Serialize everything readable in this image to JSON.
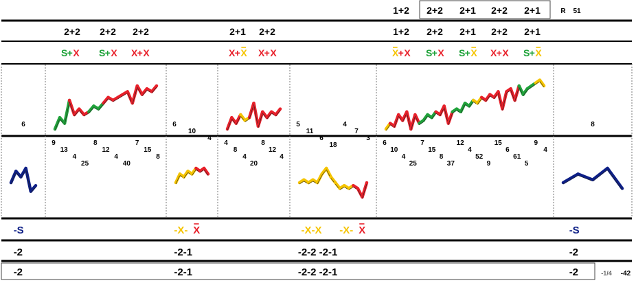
{
  "colors": {
    "green": "#1fa23a",
    "red": "#e8202a",
    "yellow": "#f5c400",
    "navy": "#0d1f86",
    "black": "#000000"
  },
  "header": {
    "boxed_codes": [
      "1+2",
      "2+2",
      "2+1",
      "2+2",
      "2+1"
    ],
    "r_label": "R",
    "r_value": "51"
  },
  "combo_row": [
    {
      "col": 1,
      "items": [
        "2+2",
        "2+2",
        "2+2"
      ]
    },
    {
      "col": 3,
      "items": [
        "2+1",
        "2+2"
      ]
    },
    {
      "col": 5,
      "items": [
        "1+2",
        "2+2",
        "2+1",
        "2+2",
        "2+1"
      ]
    }
  ],
  "symbol_row": [
    {
      "col": 1,
      "items": [
        [
          {
            "t": "S",
            "c": "green"
          },
          {
            "t": "+",
            "c": "green"
          },
          {
            "t": "X",
            "c": "red"
          }
        ],
        [
          {
            "t": "S",
            "c": "green"
          },
          {
            "t": "+",
            "c": "green"
          },
          {
            "t": "X",
            "c": "red"
          }
        ],
        [
          {
            "t": "X",
            "c": "red"
          },
          {
            "t": "+",
            "c": "red"
          },
          {
            "t": "X",
            "c": "red"
          }
        ]
      ]
    },
    {
      "col": 3,
      "items": [
        [
          {
            "t": "X",
            "c": "red"
          },
          {
            "t": "+",
            "c": "red"
          },
          {
            "t": "X",
            "c": "yellow",
            "bar": true
          }
        ],
        [
          {
            "t": "X",
            "c": "red"
          },
          {
            "t": "+",
            "c": "red"
          },
          {
            "t": "X",
            "c": "red"
          }
        ]
      ]
    },
    {
      "col": 5,
      "items": [
        [
          {
            "t": "X",
            "c": "yellow",
            "bar": true
          },
          {
            "t": "+",
            "c": "red"
          },
          {
            "t": "X",
            "c": "red"
          }
        ],
        [
          {
            "t": "S",
            "c": "green"
          },
          {
            "t": "+",
            "c": "green"
          },
          {
            "t": "X",
            "c": "red"
          }
        ],
        [
          {
            "t": "S",
            "c": "green"
          },
          {
            "t": "+",
            "c": "green"
          },
          {
            "t": "X",
            "c": "yellow",
            "bar": true
          }
        ],
        [
          {
            "t": "X",
            "c": "red"
          },
          {
            "t": "+",
            "c": "red"
          },
          {
            "t": "X",
            "c": "red"
          }
        ],
        [
          {
            "t": "S",
            "c": "green"
          },
          {
            "t": "+",
            "c": "green"
          },
          {
            "t": "X",
            "c": "yellow",
            "bar": true
          }
        ]
      ]
    }
  ],
  "upper_numbers": [
    {
      "col": 0,
      "values": [
        "6"
      ]
    },
    {
      "col": 2,
      "values": [
        "6",
        "10",
        "4"
      ]
    },
    {
      "col": 4,
      "values": [
        "5",
        "11",
        "6",
        "18",
        "4",
        "7",
        "3"
      ]
    },
    {
      "col": 6,
      "values": [
        "8"
      ]
    }
  ],
  "lower_numbers": [
    {
      "col": 1,
      "values": [
        "9",
        "13",
        "4",
        "25",
        "8",
        "12",
        "4",
        "40",
        "7",
        "15",
        "8"
      ]
    },
    {
      "col": 3,
      "values": [
        "4",
        "8",
        "4",
        "20",
        "8",
        "12",
        "4"
      ]
    },
    {
      "col": 5,
      "values": [
        "6",
        "10",
        "4",
        "25",
        "7",
        "15",
        "8",
        "37",
        "12",
        "4",
        "52",
        "9",
        "15",
        "6",
        "61",
        "5",
        "9",
        "4"
      ]
    }
  ],
  "bottom_rows": [
    [
      {
        "col": 0,
        "parts": [
          {
            "t": "-S",
            "c": "navy"
          }
        ]
      },
      {
        "col": 2,
        "parts": [
          {
            "t": "-X-",
            "c": "yellow"
          },
          {
            "t": "X",
            "c": "red",
            "bar": true
          }
        ]
      },
      {
        "col": 4,
        "parts": [
          {
            "t": "-X-X",
            "c": "yellow"
          },
          {
            "t": "  ",
            "c": "yellow"
          },
          {
            "t": "-X-",
            "c": "yellow"
          },
          {
            "t": "X",
            "c": "red",
            "bar": true
          }
        ]
      },
      {
        "col": 6,
        "parts": [
          {
            "t": "-S",
            "c": "navy"
          }
        ]
      }
    ],
    [
      {
        "col": 0,
        "parts": [
          {
            "t": "-2",
            "c": "black"
          }
        ]
      },
      {
        "col": 2,
        "parts": [
          {
            "t": "-2-1",
            "c": "black"
          }
        ]
      },
      {
        "col": 4,
        "parts": [
          {
            "t": "-2-2   -2-1",
            "c": "black"
          }
        ]
      },
      {
        "col": 6,
        "parts": [
          {
            "t": "-2",
            "c": "black"
          }
        ]
      }
    ],
    [
      {
        "col": 0,
        "parts": [
          {
            "t": "-2",
            "c": "black"
          }
        ]
      },
      {
        "col": 2,
        "parts": [
          {
            "t": "-2-1",
            "c": "black"
          }
        ]
      },
      {
        "col": 4,
        "parts": [
          {
            "t": "-2-2   -2-1",
            "c": "black"
          }
        ]
      },
      {
        "col": 6,
        "parts": [
          {
            "t": "-2",
            "c": "black"
          }
        ]
      }
    ]
  ],
  "footer": {
    "fraction": "-1/4",
    "value": "-42"
  },
  "chart_data": {
    "type": "line",
    "title": "",
    "segments": [
      {
        "col": 0,
        "zone": "lower",
        "values": [
          {
            "v": 0,
            "c": "navy"
          },
          {
            "v": 4,
            "c": "navy"
          },
          {
            "v": 2,
            "c": "navy"
          },
          {
            "v": 5,
            "c": "navy"
          },
          {
            "v": -3,
            "c": "navy"
          },
          {
            "v": -1,
            "c": "navy"
          }
        ]
      },
      {
        "col": 1,
        "zone": "upper",
        "values": [
          {
            "v": 0,
            "c": "green"
          },
          {
            "v": 4,
            "c": "green"
          },
          {
            "v": 2,
            "c": "green"
          },
          {
            "v": 10,
            "c": "green"
          },
          {
            "v": 5,
            "c": "red"
          },
          {
            "v": 7,
            "c": "red"
          },
          {
            "v": 5,
            "c": "red"
          },
          {
            "v": 6,
            "c": "red"
          },
          {
            "v": 8,
            "c": "green"
          },
          {
            "v": 7,
            "c": "green"
          },
          {
            "v": 9,
            "c": "green"
          },
          {
            "v": 11,
            "c": "red"
          },
          {
            "v": 10,
            "c": "red"
          },
          {
            "v": 11,
            "c": "red"
          },
          {
            "v": 12,
            "c": "red"
          },
          {
            "v": 13,
            "c": "red"
          },
          {
            "v": 9,
            "c": "red"
          },
          {
            "v": 15,
            "c": "red"
          },
          {
            "v": 12,
            "c": "red"
          },
          {
            "v": 14,
            "c": "red"
          },
          {
            "v": 13,
            "c": "red"
          },
          {
            "v": 15,
            "c": "red"
          }
        ]
      },
      {
        "col": 2,
        "zone": "lower",
        "values": [
          {
            "v": 0,
            "c": "yellow"
          },
          {
            "v": 3,
            "c": "yellow"
          },
          {
            "v": 2,
            "c": "yellow"
          },
          {
            "v": 4,
            "c": "yellow"
          },
          {
            "v": 3,
            "c": "yellow"
          },
          {
            "v": 5,
            "c": "yellow"
          },
          {
            "v": 4,
            "c": "red"
          },
          {
            "v": 5,
            "c": "red"
          },
          {
            "v": 3,
            "c": "red"
          }
        ]
      },
      {
        "col": 3,
        "zone": "upper",
        "values": [
          {
            "v": 0,
            "c": "red"
          },
          {
            "v": 4,
            "c": "red"
          },
          {
            "v": 2,
            "c": "red"
          },
          {
            "v": 5,
            "c": "red"
          },
          {
            "v": 3,
            "c": "yellow"
          },
          {
            "v": 4,
            "c": "yellow"
          },
          {
            "v": 9,
            "c": "red"
          },
          {
            "v": 1,
            "c": "red"
          },
          {
            "v": 6,
            "c": "red"
          },
          {
            "v": 4,
            "c": "red"
          },
          {
            "v": 6,
            "c": "red"
          },
          {
            "v": 5,
            "c": "red"
          },
          {
            "v": 7,
            "c": "red"
          }
        ]
      },
      {
        "col": 4,
        "zone": "lower",
        "values": [
          {
            "v": 0,
            "c": "yellow"
          },
          {
            "v": 1,
            "c": "yellow"
          },
          {
            "v": 0,
            "c": "yellow"
          },
          {
            "v": 1,
            "c": "yellow"
          },
          {
            "v": 0,
            "c": "yellow"
          },
          {
            "v": 3,
            "c": "yellow"
          },
          {
            "v": 5,
            "c": "yellow"
          },
          {
            "v": 2,
            "c": "yellow"
          },
          {
            "v": 0,
            "c": "yellow"
          },
          {
            "v": -2,
            "c": "yellow"
          },
          {
            "v": -1,
            "c": "yellow"
          },
          {
            "v": -2,
            "c": "yellow"
          },
          {
            "v": -1,
            "c": "yellow"
          },
          {
            "v": -2,
            "c": "red"
          },
          {
            "v": -5,
            "c": "red"
          },
          {
            "v": 0,
            "c": "red"
          }
        ]
      },
      {
        "col": 5,
        "zone": "upper",
        "values": [
          {
            "v": 0,
            "c": "yellow"
          },
          {
            "v": 2,
            "c": "yellow"
          },
          {
            "v": 1,
            "c": "red"
          },
          {
            "v": 5,
            "c": "red"
          },
          {
            "v": 3,
            "c": "red"
          },
          {
            "v": 6,
            "c": "red"
          },
          {
            "v": 0,
            "c": "red"
          },
          {
            "v": 5,
            "c": "red"
          },
          {
            "v": 2,
            "c": "red"
          },
          {
            "v": 3,
            "c": "green"
          },
          {
            "v": 5,
            "c": "green"
          },
          {
            "v": 4,
            "c": "green"
          },
          {
            "v": 6,
            "c": "green"
          },
          {
            "v": 5,
            "c": "red"
          },
          {
            "v": 8,
            "c": "red"
          },
          {
            "v": 2,
            "c": "red"
          },
          {
            "v": 6,
            "c": "red"
          },
          {
            "v": 7,
            "c": "green"
          },
          {
            "v": 6,
            "c": "green"
          },
          {
            "v": 9,
            "c": "green"
          },
          {
            "v": 8,
            "c": "green"
          },
          {
            "v": 10,
            "c": "green"
          },
          {
            "v": 9,
            "c": "yellow"
          },
          {
            "v": 11,
            "c": "yellow"
          },
          {
            "v": 10,
            "c": "red"
          },
          {
            "v": 12,
            "c": "red"
          },
          {
            "v": 11,
            "c": "red"
          },
          {
            "v": 13,
            "c": "red"
          },
          {
            "v": 7,
            "c": "red"
          },
          {
            "v": 13,
            "c": "red"
          },
          {
            "v": 14,
            "c": "red"
          },
          {
            "v": 10,
            "c": "red"
          },
          {
            "v": 15,
            "c": "red"
          },
          {
            "v": 12,
            "c": "green"
          },
          {
            "v": 14,
            "c": "green"
          },
          {
            "v": 15,
            "c": "green"
          },
          {
            "v": 16,
            "c": "green"
          },
          {
            "v": 17,
            "c": "yellow"
          },
          {
            "v": 15,
            "c": "yellow"
          }
        ]
      },
      {
        "col": 6,
        "zone": "lower",
        "values": [
          {
            "v": 0,
            "c": "navy"
          },
          {
            "v": 3,
            "c": "navy"
          },
          {
            "v": 1,
            "c": "navy"
          },
          {
            "v": 5,
            "c": "navy"
          },
          {
            "v": -2,
            "c": "navy"
          }
        ]
      }
    ]
  }
}
